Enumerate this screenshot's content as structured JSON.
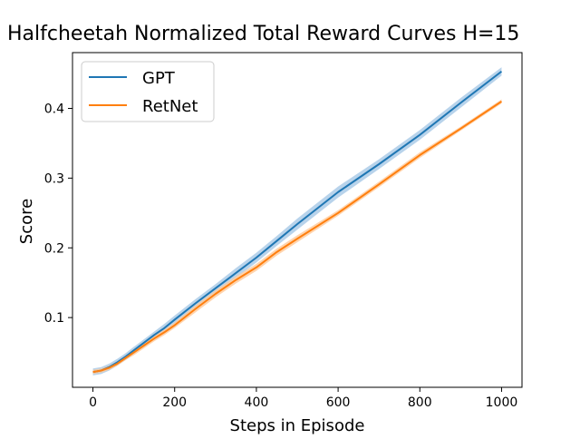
{
  "chart_data": {
    "type": "line",
    "title": "Halfcheetah Normalized Total Reward Curves H=15",
    "xlabel": "Steps in Episode",
    "ylabel": "Score",
    "xlim": [
      -50,
      1050
    ],
    "ylim": [
      0.0,
      0.48
    ],
    "xticks": [
      0,
      200,
      400,
      600,
      800,
      1000
    ],
    "xtick_labels": [
      "0",
      "200",
      "400",
      "600",
      "800",
      "1000"
    ],
    "yticks": [
      0.1,
      0.2,
      0.3,
      0.4
    ],
    "ytick_labels": [
      "0.1",
      "0.2",
      "0.3",
      "0.4"
    ],
    "grid": false,
    "legend_position": "top-left",
    "x": [
      0,
      20,
      40,
      60,
      80,
      100,
      125,
      150,
      175,
      200,
      250,
      300,
      350,
      400,
      450,
      500,
      600,
      700,
      800,
      900,
      1000
    ],
    "series": [
      {
        "name": "GPT",
        "color": "#1f77b4",
        "band_color": "#a6c8e6",
        "values": [
          0.022,
          0.024,
          0.029,
          0.036,
          0.044,
          0.053,
          0.064,
          0.075,
          0.085,
          0.097,
          0.12,
          0.142,
          0.164,
          0.186,
          0.21,
          0.234,
          0.28,
          0.32,
          0.362,
          0.408,
          0.453
        ],
        "band": [
          0.005,
          0.005,
          0.005,
          0.005,
          0.005,
          0.005,
          0.005,
          0.005,
          0.006,
          0.006,
          0.006,
          0.006,
          0.007,
          0.007,
          0.007,
          0.008,
          0.008,
          0.007,
          0.007,
          0.007,
          0.006
        ]
      },
      {
        "name": "RetNet",
        "color": "#ff7f0e",
        "band_color": "#ffc999",
        "values": [
          0.022,
          0.024,
          0.028,
          0.034,
          0.042,
          0.05,
          0.06,
          0.07,
          0.079,
          0.089,
          0.112,
          0.134,
          0.154,
          0.172,
          0.194,
          0.213,
          0.25,
          0.291,
          0.333,
          0.371,
          0.41
        ],
        "band": [
          0.003,
          0.003,
          0.003,
          0.003,
          0.003,
          0.004,
          0.004,
          0.004,
          0.004,
          0.004,
          0.005,
          0.005,
          0.005,
          0.005,
          0.005,
          0.005,
          0.004,
          0.004,
          0.004,
          0.003,
          0.003
        ]
      }
    ]
  }
}
